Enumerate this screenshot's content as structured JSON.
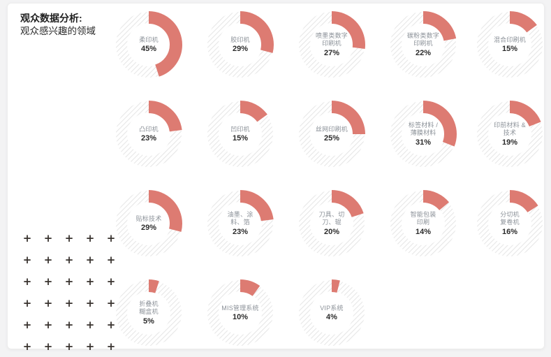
{
  "header": {
    "title": "观众数据分析:",
    "subtitle": "观众感兴趣的领域"
  },
  "colors": {
    "accent": "#dd7b72",
    "track_hatch": "#e7e7e7",
    "label_gray": "#8b9198",
    "value_dark": "#2b2b2b",
    "card_bg": "#ffffff",
    "page_bg": "#f3f3f4"
  },
  "chart_data": {
    "type": "pie",
    "variant": "donut-grid",
    "title": "观众数据分析: 观众感兴趣的领域",
    "unit": "%",
    "legend_position": "none",
    "track_style": "diagonal-hatch",
    "items": [
      {
        "label_lines": [
          "柔印机"
        ],
        "value": 45,
        "row": 0,
        "col": 0
      },
      {
        "label_lines": [
          "胶印机"
        ],
        "value": 29,
        "row": 0,
        "col": 1
      },
      {
        "label_lines": [
          "喷墨类数字",
          "印刷机"
        ],
        "value": 27,
        "row": 0,
        "col": 2
      },
      {
        "label_lines": [
          "碳粉类数字",
          "印刷机"
        ],
        "value": 22,
        "row": 0,
        "col": 3
      },
      {
        "label_lines": [
          "混合印刷机"
        ],
        "value": 15,
        "row": 0,
        "col": 4
      },
      {
        "label_lines": [
          "凸印机"
        ],
        "value": 23,
        "row": 1,
        "col": 0
      },
      {
        "label_lines": [
          "凹印机"
        ],
        "value": 15,
        "row": 1,
        "col": 1
      },
      {
        "label_lines": [
          "丝网印刷机"
        ],
        "value": 25,
        "row": 1,
        "col": 2
      },
      {
        "label_lines": [
          "标签材料 /",
          "薄膜材料"
        ],
        "value": 31,
        "row": 1,
        "col": 3
      },
      {
        "label_lines": [
          "印前材料 &",
          "技术"
        ],
        "value": 19,
        "row": 1,
        "col": 4
      },
      {
        "label_lines": [
          "贴标技术"
        ],
        "value": 29,
        "row": 2,
        "col": 0
      },
      {
        "label_lines": [
          "油墨、涂",
          "料、箔"
        ],
        "value": 23,
        "row": 2,
        "col": 1
      },
      {
        "label_lines": [
          "刀具、切",
          "刀、辊"
        ],
        "value": 20,
        "row": 2,
        "col": 2
      },
      {
        "label_lines": [
          "智能包装",
          "印刷"
        ],
        "value": 14,
        "row": 2,
        "col": 3
      },
      {
        "label_lines": [
          "分切机",
          "复卷机"
        ],
        "value": 16,
        "row": 2,
        "col": 4
      },
      {
        "label_lines": [
          "折叠机",
          "糊盒机"
        ],
        "value": 5,
        "row": 3,
        "col": 0
      },
      {
        "label_lines": [
          "MIS管理系统"
        ],
        "value": 10,
        "row": 3,
        "col": 1
      },
      {
        "label_lines": [
          "VIP系统"
        ],
        "value": 4,
        "row": 3,
        "col": 2
      }
    ]
  },
  "decoration": {
    "plus_pattern": {
      "glyph": "+",
      "rows": 6,
      "cols": 5
    }
  }
}
